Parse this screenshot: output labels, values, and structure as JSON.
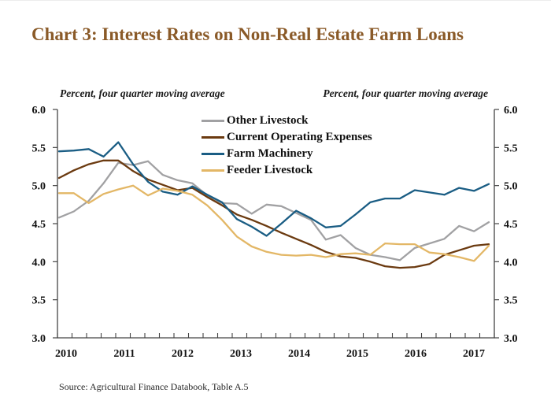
{
  "chart_data": {
    "type": "line",
    "title": "Chart 3: Interest Rates on Non-Real Estate Farm Loans",
    "axis_note_left": "Percent, four quarter moving average",
    "axis_note_right": "Percent, four quarter moving average",
    "source_note": "Source: Agricultural Finance Databook, Table A.5",
    "x_tick_labels": [
      "2010",
      "2011",
      "2012",
      "2013",
      "2014",
      "2015",
      "2016",
      "2017"
    ],
    "x_frequency": "quarterly",
    "x_start_label": "2010Q1",
    "x_end_label": "2017Q2",
    "ylim": [
      3.0,
      6.0
    ],
    "y_ticks": [
      3.0,
      3.5,
      4.0,
      4.5,
      5.0,
      5.5,
      6.0
    ],
    "grid": false,
    "legend_position": "upper-center-inside",
    "series": [
      {
        "name": "Other Livestock",
        "slug": "other-livestock",
        "color": "#a1a1a3",
        "values": [
          4.58,
          4.66,
          4.8,
          5.03,
          5.3,
          5.27,
          5.32,
          5.14,
          5.07,
          5.03,
          4.87,
          4.77,
          4.76,
          4.63,
          4.75,
          4.73,
          4.64,
          4.55,
          4.29,
          4.35,
          4.18,
          4.09,
          4.06,
          4.02,
          4.18,
          4.24,
          4.3,
          4.47,
          4.4,
          4.52
        ]
      },
      {
        "name": "Current Operating Expenses",
        "slug": "current-operating-expenses",
        "color": "#6b3a10",
        "values": [
          5.1,
          5.2,
          5.28,
          5.33,
          5.33,
          5.19,
          5.08,
          5.01,
          4.94,
          4.97,
          4.85,
          4.74,
          4.62,
          4.55,
          4.47,
          4.38,
          4.3,
          4.22,
          4.13,
          4.07,
          4.05,
          4.0,
          3.94,
          3.92,
          3.93,
          3.97,
          4.09,
          4.15,
          4.21,
          4.23
        ]
      },
      {
        "name": "Farm Machinery",
        "slug": "farm-machinery",
        "color": "#1a5d84",
        "values": [
          5.45,
          5.46,
          5.48,
          5.38,
          5.57,
          5.28,
          5.05,
          4.92,
          4.88,
          4.99,
          4.88,
          4.78,
          4.56,
          4.46,
          4.34,
          4.5,
          4.67,
          4.57,
          4.45,
          4.47,
          4.62,
          4.78,
          4.83,
          4.83,
          4.94,
          4.91,
          4.88,
          4.97,
          4.93,
          5.02
        ]
      },
      {
        "name": "Feeder Livestock",
        "slug": "feeder-livestock",
        "color": "#e3b766",
        "values": [
          4.9,
          4.9,
          4.77,
          4.89,
          4.95,
          5.0,
          4.87,
          4.96,
          4.93,
          4.88,
          4.74,
          4.55,
          4.33,
          4.2,
          4.13,
          4.09,
          4.08,
          4.09,
          4.06,
          4.1,
          4.11,
          4.09,
          4.24,
          4.23,
          4.23,
          4.12,
          4.1,
          4.06,
          4.01,
          4.21
        ]
      }
    ]
  },
  "theme": {
    "title_color": "#8a5a28",
    "axis_color": "#444444",
    "text_color": "#111111",
    "background": "#ffffff"
  }
}
